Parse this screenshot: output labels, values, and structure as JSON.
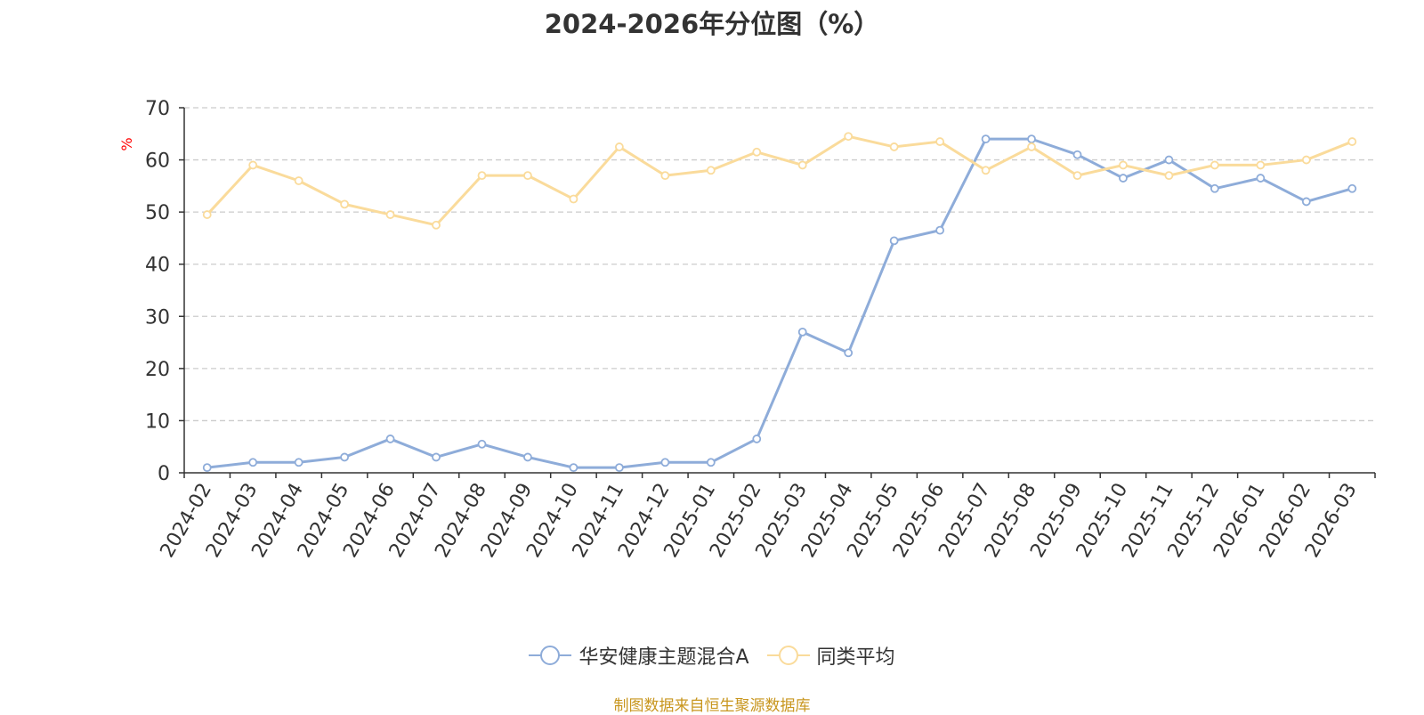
{
  "title": "2024-2026年分位图（%）",
  "source": "制图数据来自恒生聚源数据库",
  "colors": {
    "series1": "#8EACD9",
    "series2": "#FADB9B",
    "ylabel": "#FF0000",
    "grid": "#CCCCCC",
    "axis": "#333333",
    "source": "#C8961E"
  },
  "chart_data": {
    "type": "line",
    "title": "2024-2026年分位图（%）",
    "ylabel": "%",
    "ylim": [
      0,
      70
    ],
    "yticks": [
      0,
      10,
      20,
      30,
      40,
      50,
      60,
      70
    ],
    "grid": "horizontal dashed",
    "legend_position": "bottom",
    "categories": [
      "2024-02",
      "2024-03",
      "2024-04",
      "2024-05",
      "2024-06",
      "2024-07",
      "2024-08",
      "2024-09",
      "2024-10",
      "2024-11",
      "2024-12",
      "2025-01",
      "2025-02",
      "2025-03",
      "2025-04",
      "2025-05",
      "2025-06",
      "2025-07",
      "2025-08",
      "2025-09",
      "2025-10",
      "2025-11",
      "2025-12",
      "2026-01",
      "2026-02",
      "2026-03"
    ],
    "series": [
      {
        "name": "华安健康主题混合A",
        "values": [
          1,
          2,
          2,
          3,
          6.5,
          3,
          5.5,
          3,
          1,
          1,
          2,
          2,
          6.5,
          27,
          23,
          44.5,
          46.5,
          64,
          64,
          61,
          56.5,
          60,
          54.5,
          56.5,
          52,
          54.5
        ]
      },
      {
        "name": "同类平均",
        "values": [
          49.5,
          59,
          56,
          51.5,
          49.5,
          47.5,
          57,
          57,
          52.5,
          62.5,
          57,
          58,
          61.5,
          59,
          64.5,
          62.5,
          63.5,
          58,
          62.5,
          57,
          59,
          57,
          59,
          59,
          60,
          63.5
        ]
      }
    ]
  }
}
